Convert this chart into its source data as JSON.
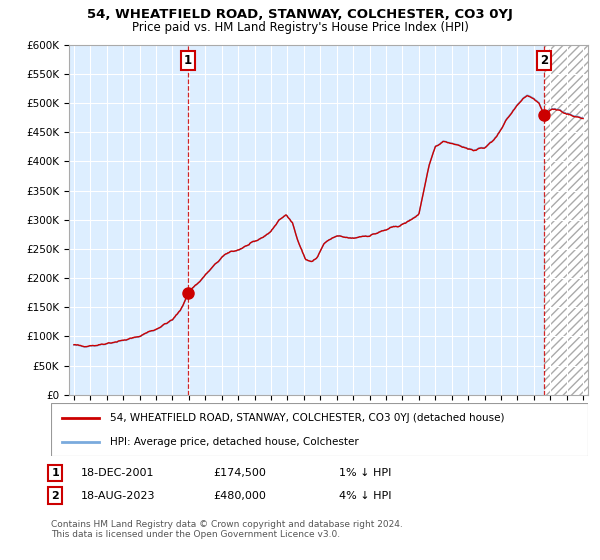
{
  "title1": "54, WHEATFIELD ROAD, STANWAY, COLCHESTER, CO3 0YJ",
  "title2": "Price paid vs. HM Land Registry's House Price Index (HPI)",
  "ylim": [
    0,
    600000
  ],
  "yticks": [
    0,
    50000,
    100000,
    150000,
    200000,
    250000,
    300000,
    350000,
    400000,
    450000,
    500000,
    550000,
    600000
  ],
  "sale1_price": 174500,
  "sale1_x": 2001.96,
  "sale2_price": 480000,
  "sale2_x": 2023.63,
  "line_color_hpi": "#7aaadd",
  "line_color_price": "#cc0000",
  "marker_color": "#cc0000",
  "bg_color": "#ddeeff",
  "grid_color": "#ffffff",
  "legend_label1": "54, WHEATFIELD ROAD, STANWAY, COLCHESTER, CO3 0YJ (detached house)",
  "legend_label2": "HPI: Average price, detached house, Colchester",
  "footer": "Contains HM Land Registry data © Crown copyright and database right 2024.\nThis data is licensed under the Open Government Licence v3.0.",
  "xstart": 1995,
  "xend": 2026
}
